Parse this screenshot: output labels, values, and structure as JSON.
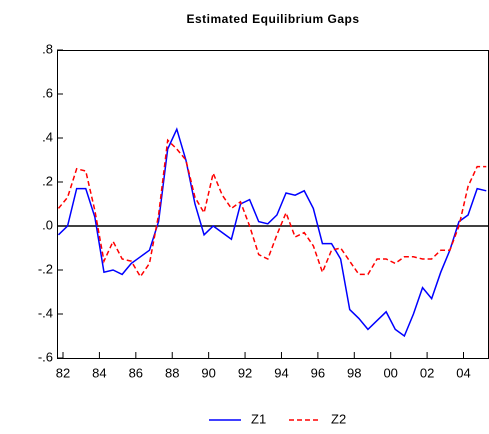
{
  "chart_data": {
    "type": "line",
    "title": "Estimated Equilibrium Gaps",
    "x": [
      1981.75,
      1982.25,
      1982.75,
      1983.25,
      1983.75,
      1984.25,
      1984.75,
      1985.25,
      1985.75,
      1986.25,
      1986.75,
      1987.25,
      1987.75,
      1988.25,
      1988.75,
      1989.25,
      1989.75,
      1990.25,
      1990.75,
      1991.25,
      1991.75,
      1992.25,
      1992.75,
      1993.25,
      1993.75,
      1994.25,
      1994.75,
      1995.25,
      1995.75,
      1996.25,
      1996.75,
      1997.25,
      1997.75,
      1998.25,
      1998.75,
      1999.25,
      1999.75,
      2000.25,
      2000.75,
      2001.25,
      2001.75,
      2002.25,
      2002.75,
      2003.25,
      2003.75,
      2004.25,
      2004.75,
      2005.25
    ],
    "series": [
      {
        "name": "Z1",
        "color": "#0000ff",
        "dashed": false,
        "values": [
          -0.04,
          0.0,
          0.17,
          0.17,
          0.04,
          -0.21,
          -0.2,
          -0.22,
          -0.17,
          -0.14,
          -0.11,
          0.02,
          0.35,
          0.44,
          0.3,
          0.1,
          -0.04,
          0.0,
          -0.03,
          -0.06,
          0.1,
          0.12,
          0.02,
          0.01,
          0.05,
          0.15,
          0.14,
          0.16,
          0.08,
          -0.08,
          -0.08,
          -0.15,
          -0.38,
          -0.42,
          -0.47,
          -0.43,
          -0.39,
          -0.47,
          -0.5,
          -0.4,
          -0.28,
          -0.33,
          -0.21,
          -0.11,
          0.02,
          0.05,
          0.17,
          0.16
        ]
      },
      {
        "name": "Z2",
        "color": "#ff0000",
        "dashed": true,
        "values": [
          0.08,
          0.13,
          0.26,
          0.25,
          0.07,
          -0.16,
          -0.07,
          -0.15,
          -0.16,
          -0.23,
          -0.17,
          0.05,
          0.39,
          0.35,
          0.3,
          0.13,
          0.06,
          0.24,
          0.14,
          0.08,
          0.11,
          0.0,
          -0.13,
          -0.15,
          -0.04,
          0.06,
          -0.05,
          -0.03,
          -0.09,
          -0.21,
          -0.11,
          -0.1,
          -0.16,
          -0.22,
          -0.22,
          -0.15,
          -0.15,
          -0.17,
          -0.14,
          -0.14,
          -0.15,
          -0.15,
          -0.11,
          -0.11,
          0.0,
          0.18,
          0.27,
          0.27
        ]
      }
    ],
    "xlim": [
      1981.67,
      2005.4
    ],
    "ylim": [
      -0.6,
      0.8
    ],
    "xticks": [
      {
        "value": 1982,
        "label": "82"
      },
      {
        "value": 1984,
        "label": "84"
      },
      {
        "value": 1986,
        "label": "86"
      },
      {
        "value": 1988,
        "label": "88"
      },
      {
        "value": 1990,
        "label": "90"
      },
      {
        "value": 1992,
        "label": "92"
      },
      {
        "value": 1994,
        "label": "94"
      },
      {
        "value": 1996,
        "label": "96"
      },
      {
        "value": 1998,
        "label": "98"
      },
      {
        "value": 2000,
        "label": "00"
      },
      {
        "value": 2002,
        "label": "02"
      },
      {
        "value": 2004,
        "label": "04"
      }
    ],
    "yticks": [
      {
        "value": 0.8,
        "label": ".8"
      },
      {
        "value": 0.6,
        "label": ".6"
      },
      {
        "value": 0.4,
        "label": ".4"
      },
      {
        "value": 0.2,
        "label": ".2"
      },
      {
        "value": 0,
        "label": ".0"
      },
      {
        "value": -0.2,
        "label": "-.2"
      },
      {
        "value": -0.4,
        "label": "-.4"
      },
      {
        "value": -0.6,
        "label": "-.6"
      }
    ],
    "zero_line": true,
    "legend": "bottom"
  }
}
